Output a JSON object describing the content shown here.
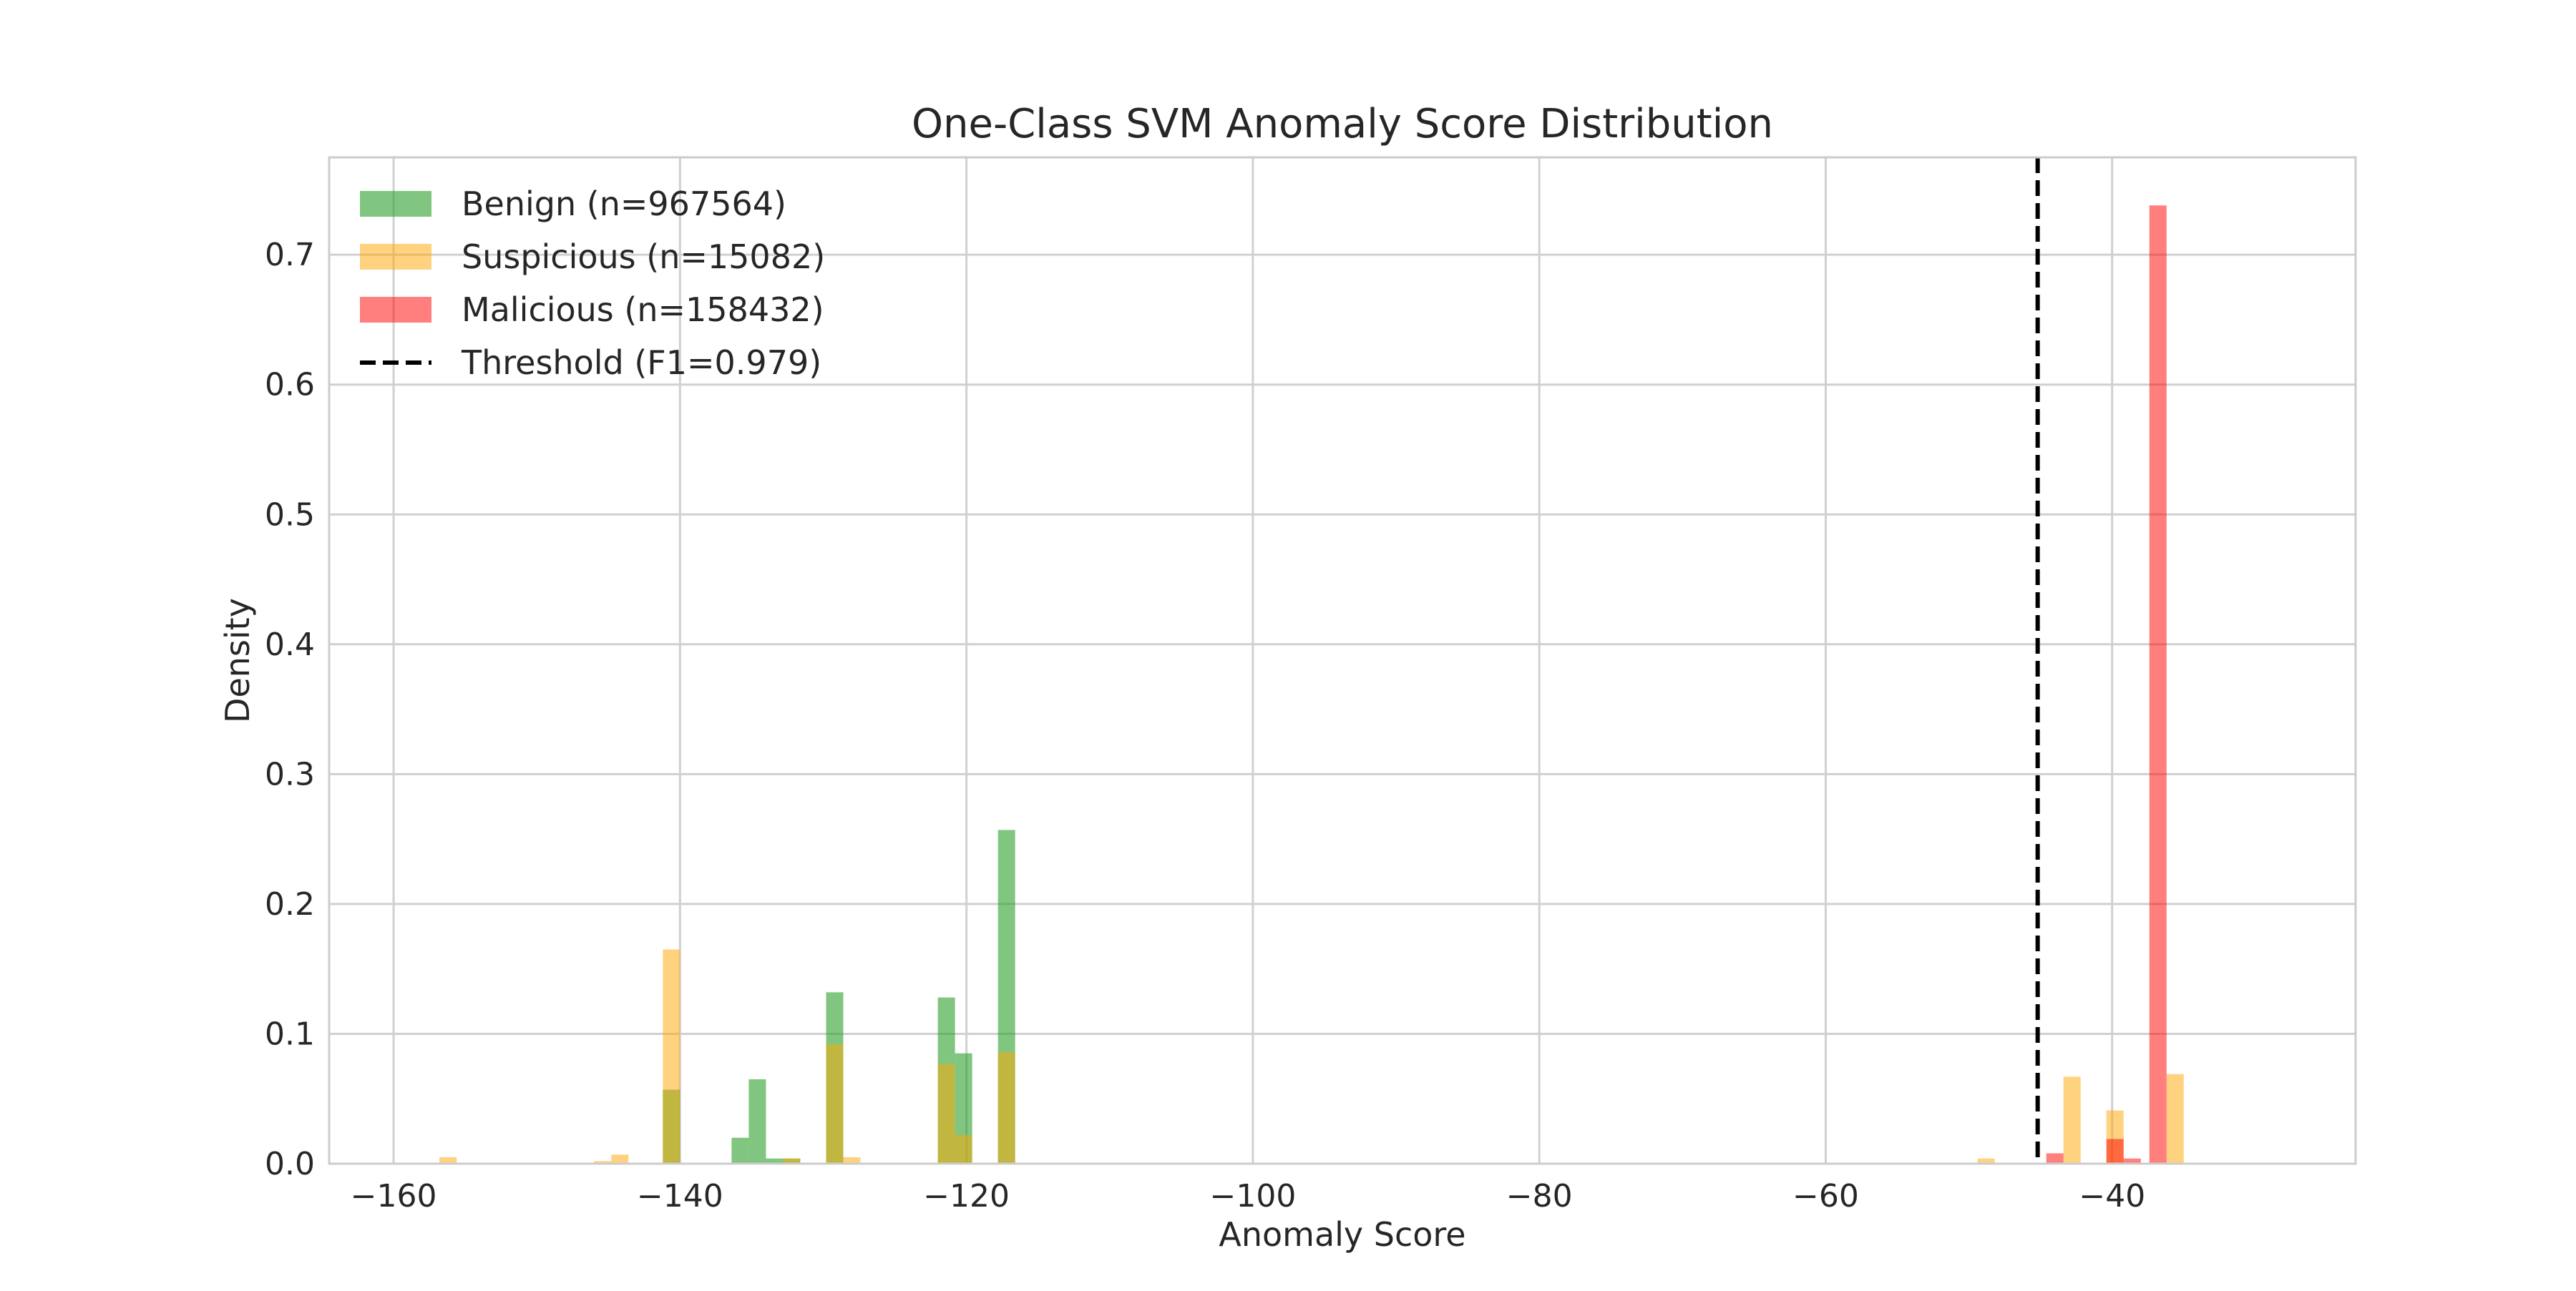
{
  "chart_data": {
    "type": "bar",
    "title": "One-Class SVM Anomaly Score Distribution",
    "xlabel": "Anomaly Score",
    "ylabel": "Density",
    "xlim": [
      -164.5,
      -23
    ],
    "ylim": [
      0,
      0.775
    ],
    "x_ticks": [
      -160,
      -140,
      -120,
      -100,
      -80,
      -60,
      -40
    ],
    "x_tick_labels": [
      "−160",
      "−140",
      "−120",
      "−100",
      "−80",
      "−60",
      "−40"
    ],
    "y_ticks": [
      0,
      0.1,
      0.2,
      0.3,
      0.4,
      0.5,
      0.6,
      0.7
    ],
    "y_tick_labels": [
      "0.0",
      "0.1",
      "0.2",
      "0.3",
      "0.4",
      "0.5",
      "0.6",
      "0.7"
    ],
    "grid": true,
    "legend_position": "top-left",
    "bin_width": 1.2,
    "series": [
      {
        "name": "Benign (n=967564)",
        "color": "#2ca02c",
        "opacity": 0.6,
        "bins": [
          {
            "x": -140.6,
            "y": 0.057
          },
          {
            "x": -135.8,
            "y": 0.02
          },
          {
            "x": -134.6,
            "y": 0.065
          },
          {
            "x": -133.4,
            "y": 0.004
          },
          {
            "x": -132.2,
            "y": 0.004
          },
          {
            "x": -129.2,
            "y": 0.132
          },
          {
            "x": -121.4,
            "y": 0.128
          },
          {
            "x": -120.2,
            "y": 0.085
          },
          {
            "x": -117.2,
            "y": 0.257
          }
        ]
      },
      {
        "name": "Suspicious (n=15082)",
        "color": "#ffa500",
        "opacity": 0.5,
        "bins": [
          {
            "x": -156.2,
            "y": 0.005
          },
          {
            "x": -145.4,
            "y": 0.002
          },
          {
            "x": -144.2,
            "y": 0.007
          },
          {
            "x": -140.6,
            "y": 0.165
          },
          {
            "x": -132.2,
            "y": 0.004
          },
          {
            "x": -129.2,
            "y": 0.092
          },
          {
            "x": -128.0,
            "y": 0.005
          },
          {
            "x": -121.4,
            "y": 0.077
          },
          {
            "x": -120.2,
            "y": 0.022
          },
          {
            "x": -117.2,
            "y": 0.086
          },
          {
            "x": -48.8,
            "y": 0.004
          },
          {
            "x": -42.8,
            "y": 0.067
          },
          {
            "x": -39.8,
            "y": 0.041
          },
          {
            "x": -35.6,
            "y": 0.069
          }
        ]
      },
      {
        "name": "Malicious (n=158432)",
        "color": "#ff0000",
        "opacity": 0.5,
        "bins": [
          {
            "x": -44.0,
            "y": 0.008
          },
          {
            "x": -39.8,
            "y": 0.019
          },
          {
            "x": -38.6,
            "y": 0.004
          },
          {
            "x": -36.8,
            "y": 0.738
          }
        ]
      }
    ],
    "threshold": {
      "name": "Threshold (F1=0.979)",
      "x": -45.2,
      "color": "#000000",
      "style": "dashed"
    }
  }
}
